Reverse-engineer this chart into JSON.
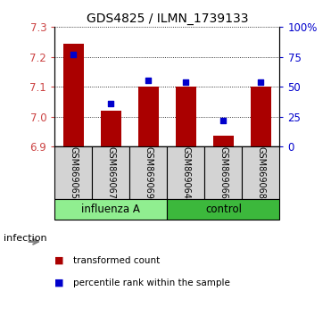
{
  "title": "GDS4825 / ILMN_1739133",
  "samples": [
    "GSM869065",
    "GSM869067",
    "GSM869069",
    "GSM869064",
    "GSM869066",
    "GSM869068"
  ],
  "groups": [
    "influenza A",
    "influenza A",
    "influenza A",
    "control",
    "control",
    "control"
  ],
  "group_labels": [
    "influenza A",
    "control"
  ],
  "light_green": "#90EE90",
  "dark_green": "#3CB83C",
  "bar_color": "#AA0000",
  "dot_color": "#0000CC",
  "transformed_count": [
    7.245,
    7.02,
    7.1,
    7.1,
    6.935,
    7.1
  ],
  "percentile_rank": [
    77,
    36,
    55,
    54,
    22,
    54
  ],
  "ylim_left": [
    6.9,
    7.3
  ],
  "ylim_right": [
    0,
    100
  ],
  "yticks_left": [
    6.9,
    7.0,
    7.1,
    7.2,
    7.3
  ],
  "yticks_right": [
    0,
    25,
    50,
    75,
    100
  ],
  "ytick_labels_right": [
    "0",
    "25",
    "50",
    "75",
    "100%"
  ],
  "legend_items": [
    "transformed count",
    "percentile rank within the sample"
  ],
  "bar_bottom": 6.9,
  "sample_box_color": "#D3D3D3"
}
